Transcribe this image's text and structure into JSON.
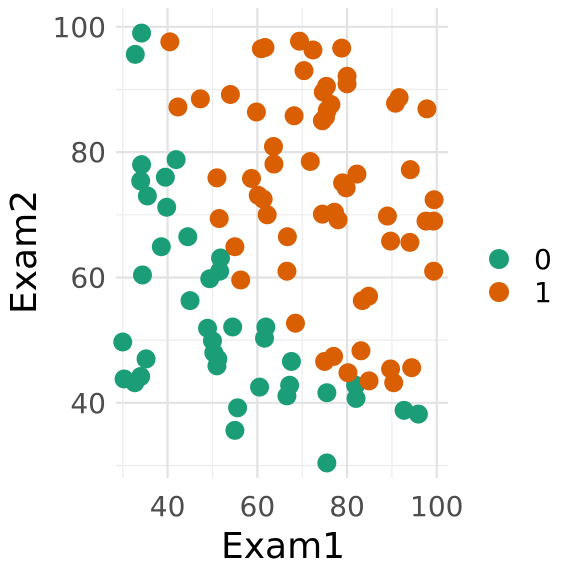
{
  "chart_data": {
    "type": "scatter",
    "xlabel": "Exam1",
    "ylabel": "Exam2",
    "xlim": [
      28.5,
      102.5
    ],
    "ylim": [
      28,
      103
    ],
    "x_ticks": [
      40,
      60,
      80,
      100
    ],
    "y_ticks": [
      40,
      60,
      80,
      100
    ],
    "grid": true,
    "legend_position": "right",
    "series": [
      {
        "name": "0",
        "color": "#1b9e77",
        "points": [
          [
            34.2,
            99.0
          ],
          [
            32.8,
            95.6
          ],
          [
            34.2,
            78.0
          ],
          [
            34.0,
            75.4
          ],
          [
            35.5,
            73.0
          ],
          [
            39.5,
            76.0
          ],
          [
            39.8,
            71.2
          ],
          [
            41.9,
            78.8
          ],
          [
            44.5,
            66.5
          ],
          [
            38.6,
            64.9
          ],
          [
            34.4,
            60.4
          ],
          [
            30.0,
            49.7
          ],
          [
            35.2,
            47.0
          ],
          [
            30.3,
            43.8
          ],
          [
            32.7,
            43.2
          ],
          [
            34.0,
            44.2
          ],
          [
            45.0,
            56.3
          ],
          [
            48.9,
            51.9
          ],
          [
            49.4,
            59.8
          ],
          [
            51.6,
            61.0
          ],
          [
            51.8,
            63.1
          ],
          [
            50.0,
            49.9
          ],
          [
            50.3,
            48.0
          ],
          [
            51.2,
            47.0
          ],
          [
            51.0,
            45.9
          ],
          [
            54.5,
            52.1
          ],
          [
            61.9,
            52.1
          ],
          [
            61.6,
            50.3
          ],
          [
            55.6,
            39.2
          ],
          [
            55.0,
            35.6
          ],
          [
            60.5,
            42.5
          ],
          [
            67.2,
            42.8
          ],
          [
            66.6,
            41.1
          ],
          [
            67.6,
            46.6
          ],
          [
            75.5,
            41.6
          ],
          [
            81.9,
            42.8
          ],
          [
            82.0,
            40.7
          ],
          [
            92.7,
            38.8
          ],
          [
            95.9,
            38.2
          ],
          [
            75.5,
            30.4
          ]
        ]
      },
      {
        "name": "1",
        "color": "#d95f02",
        "points": [
          [
            40.5,
            97.6
          ],
          [
            60.9,
            96.5
          ],
          [
            61.7,
            96.7
          ],
          [
            69.4,
            97.7
          ],
          [
            72.4,
            96.3
          ],
          [
            78.8,
            96.6
          ],
          [
            80.0,
            92.1
          ],
          [
            80.0,
            90.9
          ],
          [
            70.4,
            93.0
          ],
          [
            74.7,
            89.6
          ],
          [
            75.4,
            90.5
          ],
          [
            76.4,
            87.6
          ],
          [
            75.6,
            86.7
          ],
          [
            74.5,
            85.0
          ],
          [
            75.2,
            85.6
          ],
          [
            68.2,
            85.8
          ],
          [
            42.3,
            87.2
          ],
          [
            47.3,
            88.5
          ],
          [
            54.0,
            89.2
          ],
          [
            59.8,
            86.4
          ],
          [
            63.6,
            80.9
          ],
          [
            63.7,
            78.1
          ],
          [
            71.8,
            78.5
          ],
          [
            58.7,
            75.8
          ],
          [
            51.0,
            75.9
          ],
          [
            60.2,
            73.1
          ],
          [
            61.3,
            72.5
          ],
          [
            62.2,
            70.0
          ],
          [
            51.5,
            69.4
          ],
          [
            66.7,
            66.5
          ],
          [
            55.0,
            64.9
          ],
          [
            56.3,
            59.6
          ],
          [
            66.6,
            61.0
          ],
          [
            68.5,
            52.7
          ],
          [
            74.5,
            70.1
          ],
          [
            77.2,
            70.4
          ],
          [
            78.0,
            69.2
          ],
          [
            79.0,
            75.1
          ],
          [
            79.8,
            74.3
          ],
          [
            82.2,
            76.5
          ],
          [
            89.0,
            69.8
          ],
          [
            89.7,
            65.8
          ],
          [
            94.0,
            65.6
          ],
          [
            94.1,
            77.2
          ],
          [
            97.8,
            86.9
          ],
          [
            91.6,
            88.7
          ],
          [
            90.8,
            87.8
          ],
          [
            97.6,
            69.0
          ],
          [
            99.3,
            69.0
          ],
          [
            99.4,
            72.4
          ],
          [
            99.3,
            61.0
          ],
          [
            83.4,
            56.3
          ],
          [
            84.8,
            57.0
          ],
          [
            75.0,
            46.6
          ],
          [
            77.0,
            47.4
          ],
          [
            83.1,
            48.3
          ],
          [
            80.2,
            44.8
          ],
          [
            84.9,
            43.5
          ],
          [
            89.7,
            45.4
          ],
          [
            90.4,
            43.2
          ],
          [
            94.4,
            45.6
          ]
        ]
      }
    ]
  }
}
